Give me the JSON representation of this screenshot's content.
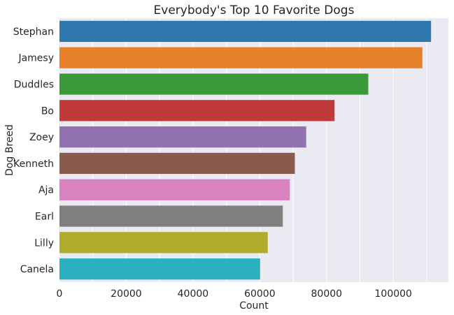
{
  "chart_data": {
    "type": "bar",
    "orientation": "horizontal",
    "title": "Everybody's Top 10 Favorite Dogs",
    "xlabel": "Count",
    "ylabel": "Dog Breed",
    "categories": [
      "Stephan",
      "Jamesy",
      "Duddles",
      "Bo",
      "Zoey",
      "Kenneth",
      "Aja",
      "Earl",
      "Lilly",
      "Canela"
    ],
    "values": [
      111300,
      108700,
      92500,
      82400,
      73900,
      70500,
      69000,
      66900,
      62400,
      60100
    ],
    "colors": [
      "#2e78ad",
      "#e6812a",
      "#3a9a3a",
      "#c0393b",
      "#9271b1",
      "#8a5a4e",
      "#d882c0",
      "#7f7f7f",
      "#b0ab2b",
      "#2cb0bf"
    ],
    "xlim": [
      0,
      116500
    ],
    "xticks": [
      0,
      20000,
      40000,
      60000,
      80000,
      100000
    ],
    "grid": true,
    "background": "#eaeaf2",
    "grid_color": "#ffffff"
  }
}
